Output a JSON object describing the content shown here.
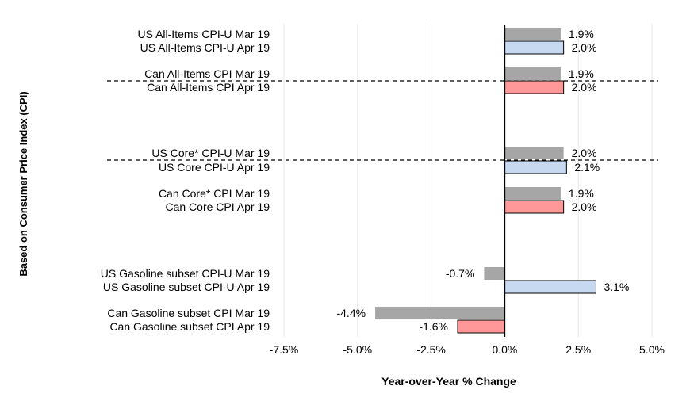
{
  "chart_data": {
    "type": "bar",
    "orientation": "horizontal",
    "xlabel": "Year-over-Year % Change",
    "ylabel": "Based on Consumer Price Index (CPI)",
    "xlim": [
      -7.5,
      5.0
    ],
    "xticks": [
      -7.5,
      -5.0,
      -2.5,
      0.0,
      2.5,
      5.0
    ],
    "xtick_labels": [
      "-7.5%",
      "-5.0%",
      "-2.5%",
      "0.0%",
      "2.5%",
      "5.0%"
    ],
    "grid": "vertical",
    "colors": {
      "mar": "#a6a6a6",
      "us_apr": "#c6d9f1",
      "can_apr": "#ff9999",
      "grid": "#e6e6e6",
      "divider": "#000000"
    },
    "group_dividers_after": [
      1,
      3
    ],
    "categories": [
      "US All-Items CPI-U Mar 19",
      "US All-Items CPI-U Apr 19",
      "Can All-Items CPI Mar 19",
      "Can All-Items CPI Apr 19",
      "US Core* CPI-U Mar 19",
      "US Core CPI-U Apr 19",
      "Can Core* CPI Mar 19",
      "Can Core CPI Apr 19",
      "US Gasoline subset CPI-U Mar 19",
      "US Gasoline subset CPI-U Apr 19",
      "Can Gasoline subset CPI Mar 19",
      "Can Gasoline subset CPI Apr 19"
    ],
    "values": [
      1.9,
      2.0,
      1.9,
      2.0,
      2.0,
      2.1,
      1.9,
      2.0,
      -0.7,
      3.1,
      -4.4,
      -1.6
    ],
    "value_labels": [
      "1.9%",
      "2.0%",
      "1.9%",
      "2.0%",
      "2.0%",
      "2.1%",
      "1.9%",
      "2.0%",
      "-0.7%",
      "3.1%",
      "-4.4%",
      "-1.6%"
    ],
    "bar_series": [
      "mar",
      "us_apr",
      "mar",
      "can_apr",
      "mar",
      "us_apr",
      "mar",
      "can_apr",
      "mar",
      "us_apr",
      "mar",
      "can_apr"
    ]
  }
}
